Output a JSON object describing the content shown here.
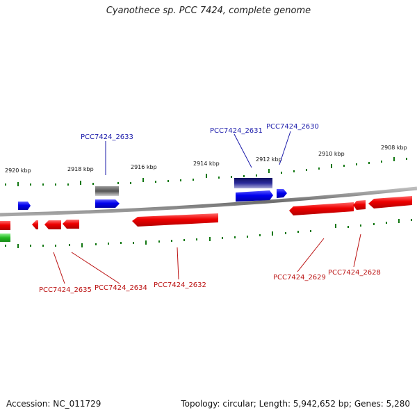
{
  "title": "Cyanothece sp. PCC 7424, complete genome",
  "footer": {
    "accession": "Accession: NC_011729",
    "topology": "Topology: circular; Length: 5,942,652 bp; Genes: 5,280"
  },
  "colors": {
    "backbone": "#8a8a8a",
    "forward": "#0000ee",
    "reverse": "#ee0000",
    "rna": "#666666",
    "other": "#22bb22",
    "tick": "#117711",
    "forward_label": "#1a1aaa",
    "reverse_label": "#bb1111"
  },
  "scale_labels": [
    "2920 kbp",
    "2918 kbp",
    "2916 kbp",
    "2914 kbp",
    "2912 kbp",
    "2910 kbp",
    "2908 kbp"
  ],
  "forward_labels": [
    "PCC7424_2633",
    "PCC7424_2631",
    "PCC7424_2630"
  ],
  "reverse_labels": [
    "PCC7424_2635",
    "PCC7424_2634",
    "PCC7424_2632",
    "PCC7424_2629",
    "PCC7424_2628"
  ]
}
